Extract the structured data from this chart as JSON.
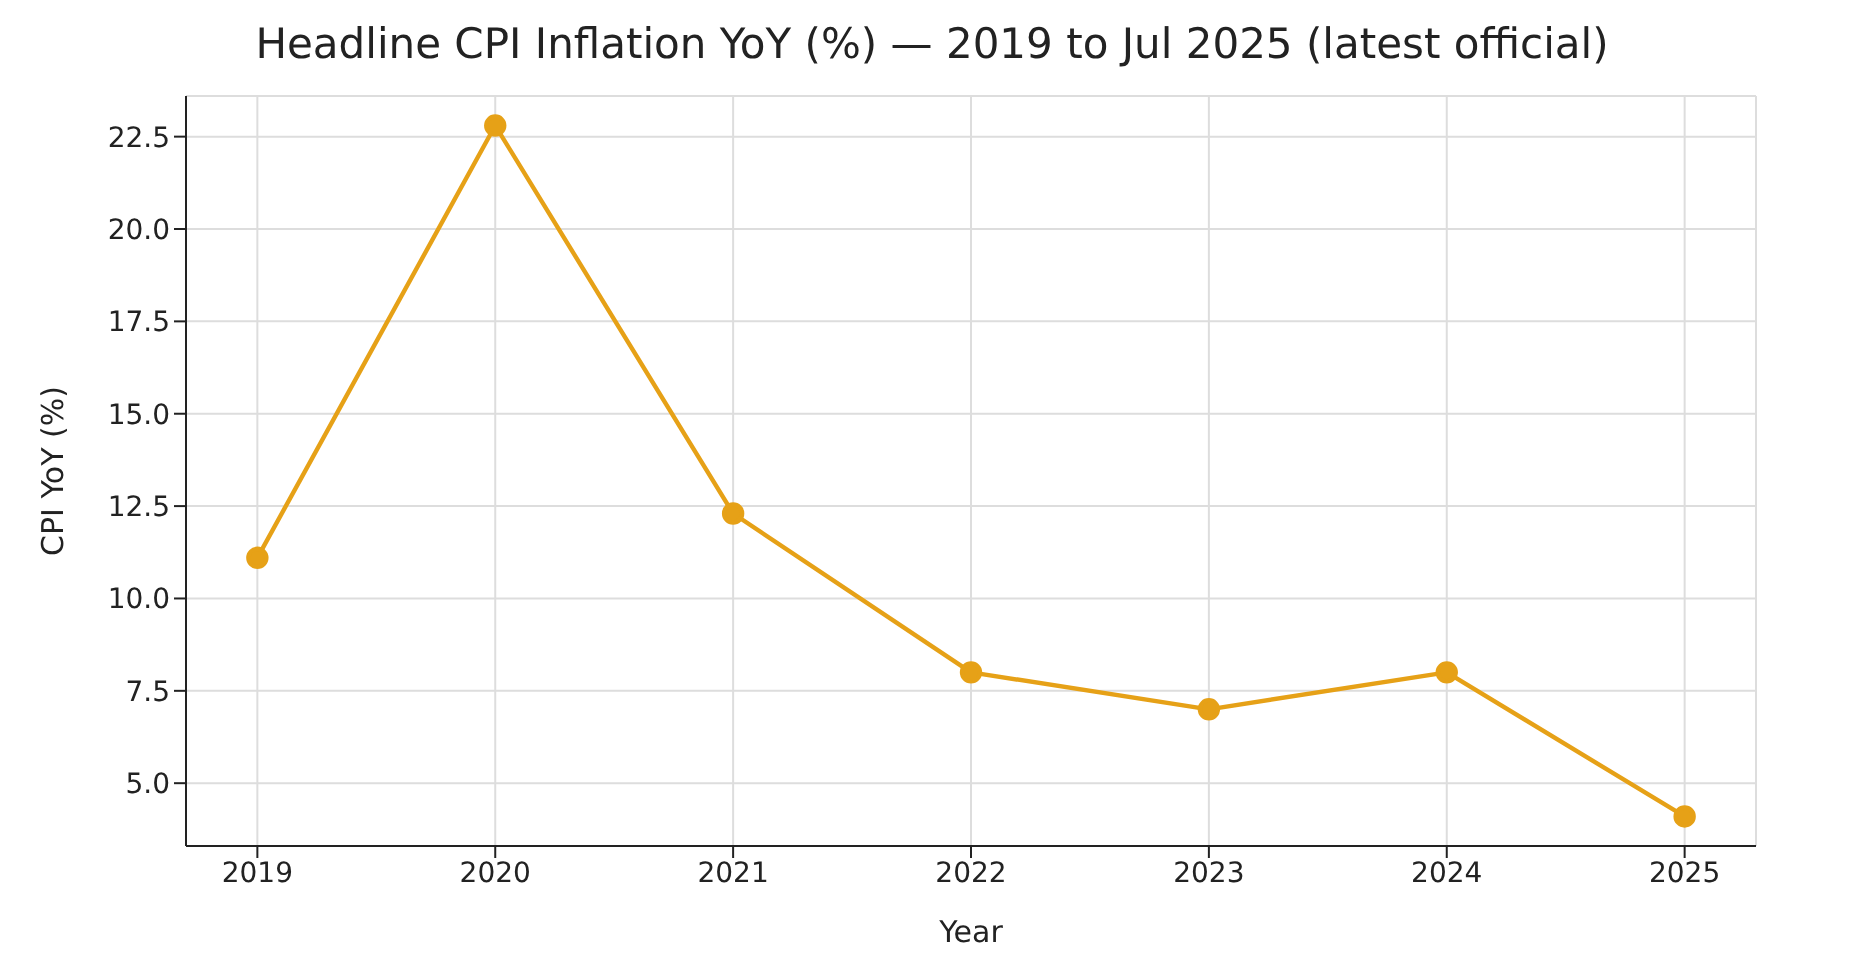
{
  "chart_data": {
    "type": "line",
    "title": "Headline CPI Inflation YoY (%) — 2019 to Jul 2025 (latest official)",
    "xlabel": "Year",
    "ylabel": "CPI YoY (%)",
    "x": [
      2019,
      2020,
      2021,
      2022,
      2023,
      2024,
      2025
    ],
    "series": [
      {
        "color": "#e6a117",
        "values": [
          11.1,
          22.8,
          12.3,
          8.0,
          7.0,
          8.0,
          4.1
        ]
      }
    ],
    "xlim": [
      2018.7,
      2025.3
    ],
    "xticks": [
      2019,
      2020,
      2021,
      2022,
      2023,
      2024,
      2025
    ],
    "ylim": [
      3.3,
      23.6
    ],
    "yticks": [
      {
        "value": 5,
        "label": "5.0"
      },
      {
        "value": 7.5,
        "label": "7.5"
      },
      {
        "value": 10,
        "label": "10.0"
      },
      {
        "value": 12.5,
        "label": "12.5"
      },
      {
        "value": 15,
        "label": "15.0"
      },
      {
        "value": 17.5,
        "label": "17.5"
      },
      {
        "value": 20,
        "label": "20.0"
      },
      {
        "value": 22.5,
        "label": "22.5"
      }
    ],
    "grid": true,
    "marker": "circle",
    "line_style": "solid"
  }
}
